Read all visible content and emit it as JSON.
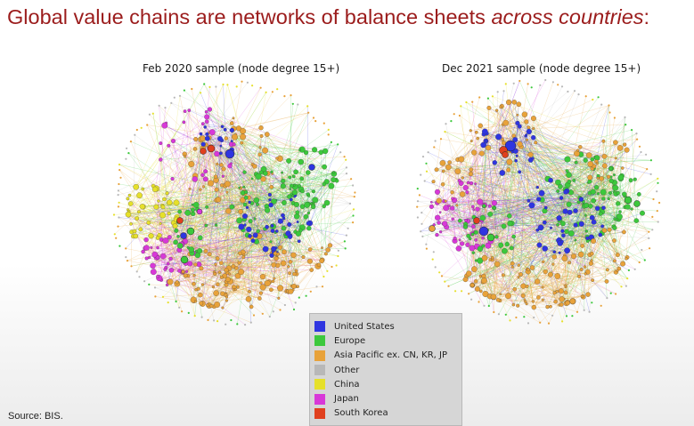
{
  "title": {
    "main": "Global value chains are networks of balance sheets ",
    "emphasis": "across countries",
    "suffix": ":"
  },
  "panels": [
    {
      "subtitle": "Feb 2020 sample (node degree 15+)"
    },
    {
      "subtitle": "Dec 2021 sample (node degree 15+)"
    }
  ],
  "legend": [
    {
      "label": "United States",
      "color": "#2f35e0"
    },
    {
      "label": "Europe",
      "color": "#3cc83c"
    },
    {
      "label": "Asia Pacific ex. CN, KR, JP",
      "color": "#e8a23a"
    },
    {
      "label": "Other",
      "color": "#b8b8b8"
    },
    {
      "label": "China",
      "color": "#e6e02a"
    },
    {
      "label": "Japan",
      "color": "#d838d8"
    },
    {
      "label": "South Korea",
      "color": "#e0401e"
    }
  ],
  "source": "Source: BIS."
}
